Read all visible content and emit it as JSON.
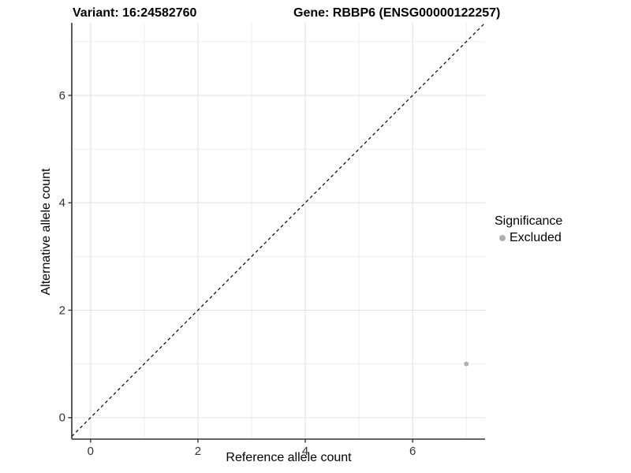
{
  "chart_data": {
    "type": "scatter",
    "title_left": "Variant: 16:24582760",
    "title_right": "Gene: RBBP6 (ENSG00000122257)",
    "xlabel": "Reference allele count",
    "ylabel": "Alternative allele count",
    "xlim": [
      -0.35,
      7.35
    ],
    "ylim": [
      -0.4,
      7.35
    ],
    "x_ticks": [
      0,
      2,
      4,
      6
    ],
    "y_ticks": [
      0,
      2,
      4,
      6
    ],
    "x_minor_ticks": [
      1,
      3,
      5,
      7
    ],
    "y_minor_ticks": [
      1,
      3,
      5,
      7
    ],
    "grid": true,
    "reference_line": {
      "type": "identity",
      "equation": "y = x",
      "style": "dashed",
      "color": "#000000"
    },
    "series": [
      {
        "name": "Excluded",
        "color": "#b0b0b0",
        "points": [
          {
            "x": 7,
            "y": 1
          }
        ]
      }
    ],
    "legend": {
      "title": "Significance",
      "position": "right",
      "items": [
        {
          "label": "Excluded",
          "color": "#b0b0b0"
        }
      ]
    }
  },
  "colors": {
    "background": "#ffffff",
    "axis_line": "#333333",
    "tick_mark": "#333333",
    "tick_label": "#333333",
    "grid_major": "#e3e3e3",
    "grid_minor": "#ededed",
    "title_text": "#000000"
  }
}
